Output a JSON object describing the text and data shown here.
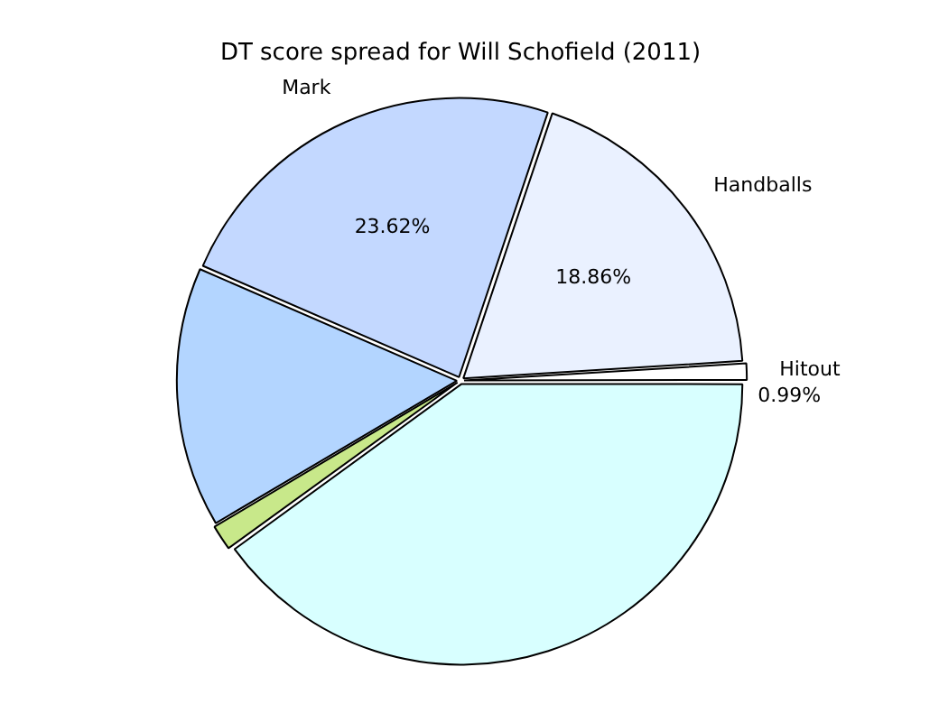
{
  "chart_data": {
    "type": "pie",
    "title": "DT score spread for Will Schofield (2011)",
    "categories": [
      null,
      null,
      null,
      "Mark",
      "Handballs",
      "Hitout"
    ],
    "values": [
      40.0,
      1.5,
      15.03,
      23.62,
      18.86,
      0.99
    ],
    "colors": [
      "#d8ffff",
      "#c8e88a",
      "#b3d5ff",
      "#c3d8ff",
      "#eaf1ff",
      "#ffffff"
    ],
    "value_labels": [
      null,
      null,
      null,
      "23.62%",
      "18.86%",
      "0.99%"
    ],
    "legend": false
  }
}
